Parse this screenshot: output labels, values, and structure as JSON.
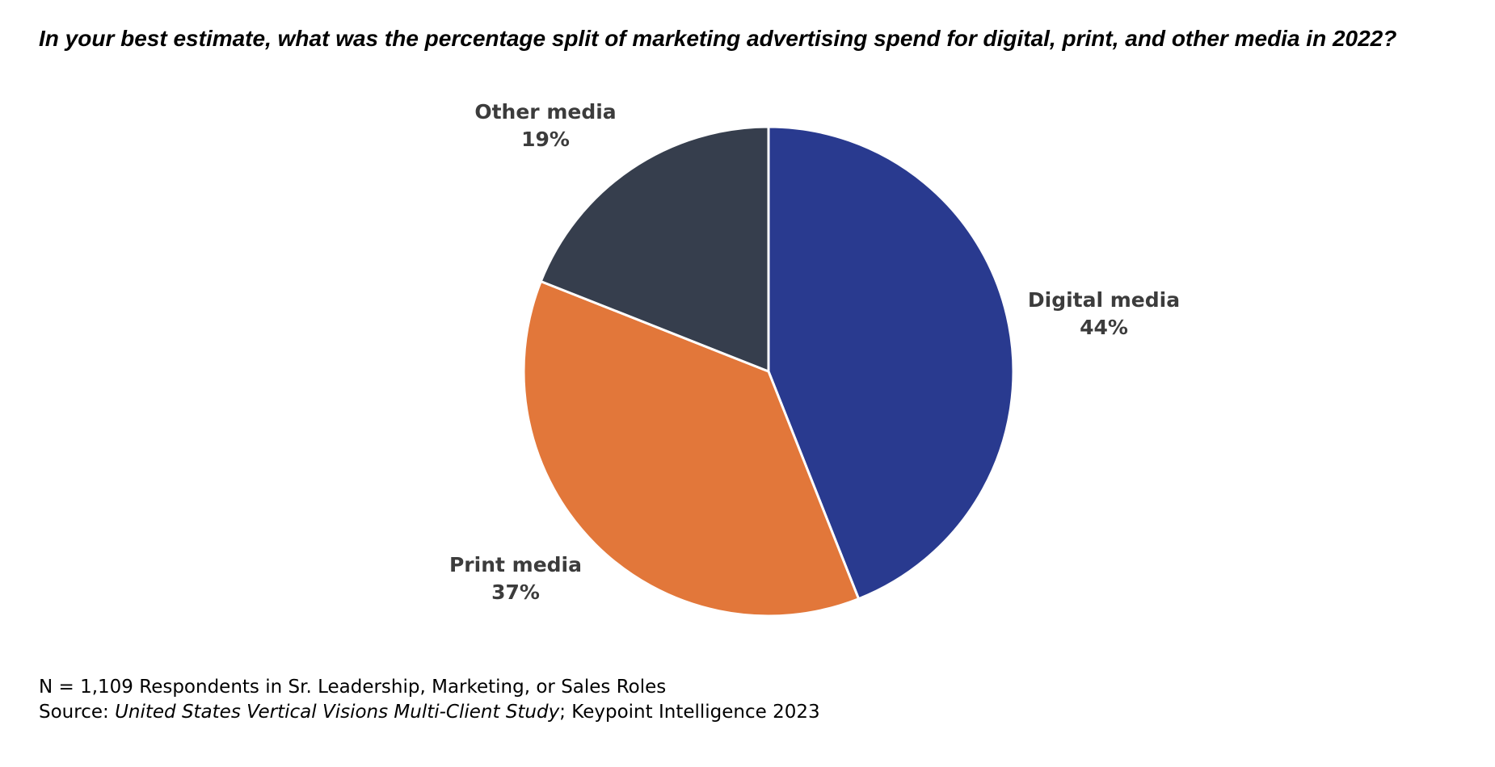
{
  "chart_data": {
    "type": "pie",
    "title": "In your best estimate, what was the percentage split of marketing advertising spend for digital, print, and other media in 2022?",
    "slices": [
      {
        "label": "Digital media",
        "value": 44,
        "value_label": "44%",
        "color": "#293a8f"
      },
      {
        "label": "Print media",
        "value": 37,
        "value_label": "37%",
        "color": "#e2773a"
      },
      {
        "label": "Other media",
        "value": 19,
        "value_label": "19%",
        "color": "#363e4d"
      }
    ]
  },
  "footnote": {
    "respondents": "N = 1,109 Respondents in Sr. Leadership, Marketing, or Sales Roles",
    "source_prefix": "Source: ",
    "source_study": "United States Vertical Visions Multi-Client Study",
    "source_suffix": "; Keypoint Intelligence 2023"
  }
}
